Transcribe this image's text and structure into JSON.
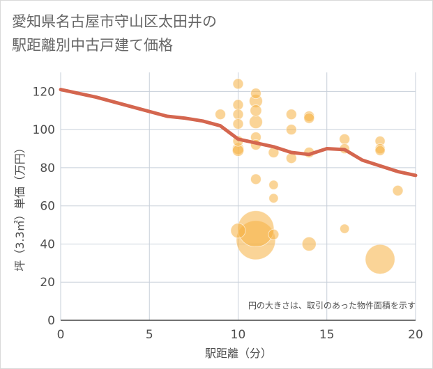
{
  "chart_data": {
    "type": "scatter",
    "title": "愛知県名古屋市守山区太田井の\n駅距離別中古戸建て価格",
    "xlabel": "駅距離（分）",
    "ylabel": "坪（3.3㎡）単価（万円）",
    "annotation": "円の大きさは、取引のあった物件面積を示す",
    "xlim": [
      0,
      20
    ],
    "ylim": [
      0,
      130
    ],
    "x_ticks": [
      0,
      5,
      10,
      15,
      20
    ],
    "y_ticks": [
      0,
      20,
      40,
      60,
      80,
      100,
      120
    ],
    "grid": true,
    "colors": {
      "bubble": "#f5b041",
      "trend": "#d4664f",
      "grid": "#c7cfd9",
      "text": "#4d4d4d"
    },
    "bubbles": [
      {
        "x": 9,
        "y": 108,
        "size": 1
      },
      {
        "x": 10,
        "y": 124,
        "size": 1
      },
      {
        "x": 10,
        "y": 113,
        "size": 1
      },
      {
        "x": 10,
        "y": 108,
        "size": 1
      },
      {
        "x": 10,
        "y": 103,
        "size": 1
      },
      {
        "x": 10,
        "y": 94,
        "size": 1
      },
      {
        "x": 10,
        "y": 90,
        "size": 1.2
      },
      {
        "x": 10,
        "y": 89,
        "size": 1.2
      },
      {
        "x": 10,
        "y": 47,
        "size": 2
      },
      {
        "x": 11,
        "y": 119,
        "size": 1
      },
      {
        "x": 11,
        "y": 115,
        "size": 1.6
      },
      {
        "x": 11,
        "y": 110,
        "size": 1.2
      },
      {
        "x": 11,
        "y": 104,
        "size": 1.6
      },
      {
        "x": 11,
        "y": 96,
        "size": 1
      },
      {
        "x": 11,
        "y": 92,
        "size": 1
      },
      {
        "x": 11,
        "y": 74,
        "size": 1
      },
      {
        "x": 11,
        "y": 48,
        "size": 12
      },
      {
        "x": 11,
        "y": 42,
        "size": 14
      },
      {
        "x": 12,
        "y": 88,
        "size": 1
      },
      {
        "x": 12,
        "y": 71,
        "size": 0.8
      },
      {
        "x": 12,
        "y": 64,
        "size": 0.8
      },
      {
        "x": 12,
        "y": 45,
        "size": 1
      },
      {
        "x": 13,
        "y": 108,
        "size": 1
      },
      {
        "x": 13,
        "y": 100,
        "size": 1
      },
      {
        "x": 13,
        "y": 85,
        "size": 1
      },
      {
        "x": 14,
        "y": 107,
        "size": 1
      },
      {
        "x": 14,
        "y": 106,
        "size": 1
      },
      {
        "x": 14,
        "y": 88,
        "size": 1
      },
      {
        "x": 14,
        "y": 40,
        "size": 1.8
      },
      {
        "x": 16,
        "y": 95,
        "size": 1
      },
      {
        "x": 16,
        "y": 90,
        "size": 0.9
      },
      {
        "x": 16,
        "y": 48,
        "size": 0.8
      },
      {
        "x": 18,
        "y": 94,
        "size": 0.9
      },
      {
        "x": 18,
        "y": 90,
        "size": 0.9
      },
      {
        "x": 18,
        "y": 89,
        "size": 0.9
      },
      {
        "x": 18,
        "y": 32,
        "size": 8
      },
      {
        "x": 19,
        "y": 68,
        "size": 1
      }
    ],
    "trend": {
      "x": [
        0,
        2,
        4,
        6,
        7,
        8,
        9,
        10,
        11,
        12,
        13,
        14,
        15,
        16,
        17,
        18,
        19,
        20
      ],
      "y": [
        121,
        117,
        112,
        107,
        106,
        104.5,
        102,
        95,
        93,
        91,
        88,
        87,
        90,
        89.5,
        84,
        81,
        78,
        76
      ]
    }
  }
}
